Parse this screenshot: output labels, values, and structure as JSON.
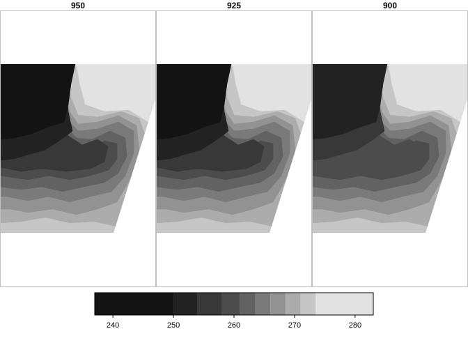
{
  "chart_data": {
    "type": "heatmap",
    "panels": [
      {
        "title": "950"
      },
      {
        "title": "925"
      },
      {
        "title": "900"
      }
    ],
    "legend": {
      "breaks": [
        237,
        250,
        254,
        258,
        261,
        263.5,
        266,
        268.5,
        271,
        273.5,
        283
      ],
      "colors": [
        "#131313",
        "#222222",
        "#383838",
        "#4c4c4c",
        "#626262",
        "#7a7a7a",
        "#929292",
        "#acacac",
        "#c6c6c6",
        "#e2e2e2"
      ],
      "ticks": [
        240,
        250,
        260,
        270,
        280
      ],
      "tick_labels": [
        "240",
        "250",
        "260",
        "270",
        "280"
      ],
      "range": [
        237,
        283
      ],
      "placement": "bottom"
    }
  }
}
